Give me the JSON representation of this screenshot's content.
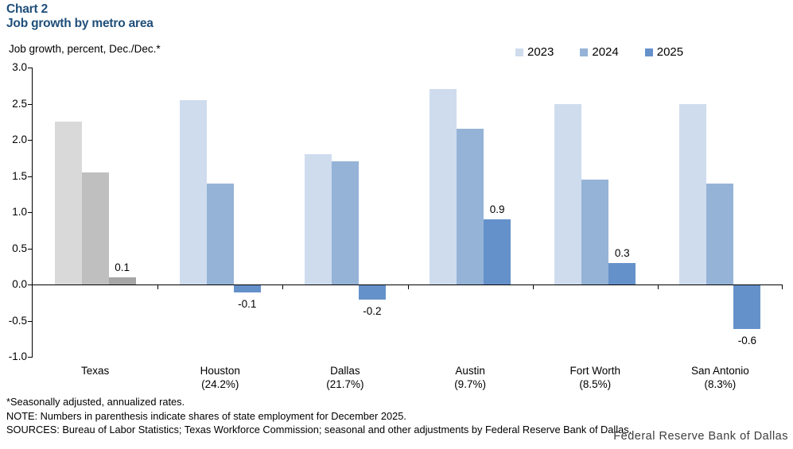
{
  "header": {
    "chart_label": "Chart 2",
    "title": "Job growth by metro area"
  },
  "chart": {
    "unit_label": "Job growth, percent, Dec./Dec.*"
  },
  "chart_data": {
    "type": "bar",
    "title": "Job growth by metro area",
    "ylabel": "Job growth, percent, Dec./Dec.*",
    "ylim": [
      -1.0,
      3.0
    ],
    "ytick_step": 0.5,
    "ytick_labels": [
      "3.0",
      "2.5",
      "2.0",
      "1.5",
      "1.0",
      "0.5",
      "0.0",
      "-0.5",
      "-1.0"
    ],
    "grid": false,
    "legend_position": "top-right",
    "categories": [
      "Texas",
      "Houston",
      "Dallas",
      "Austin",
      "Fort Worth",
      "San Antonio"
    ],
    "category_sublabels": [
      "",
      "(24.2%)",
      "(21.7%)",
      "(9.7%)",
      "(8.5%)",
      "(8.3%)"
    ],
    "series": [
      {
        "name": "2023",
        "color": "#cfdcee",
        "texas_color": "#d9d9d9",
        "values": [
          2.25,
          2.55,
          1.8,
          2.7,
          2.5,
          2.5
        ]
      },
      {
        "name": "2024",
        "color": "#95b3d7",
        "texas_color": "#bfbfbf",
        "values": [
          1.55,
          1.4,
          1.7,
          2.15,
          1.45,
          1.4
        ]
      },
      {
        "name": "2025",
        "color": "#6591ca",
        "texas_color": "#a6a6a6",
        "values": [
          0.1,
          -0.1,
          -0.2,
          0.9,
          0.3,
          -0.6
        ],
        "data_labels": [
          "0.1",
          "-0.1",
          "-0.2",
          "0.9",
          "0.3",
          "-0.6"
        ]
      }
    ]
  },
  "footer": {
    "footnote": "*Seasonally adjusted, annualized rates.",
    "note": "NOTE: Numbers in parenthesis indicate shares of state employment for December 2025.",
    "sources": "SOURCES: Bureau of Labor Statistics; Texas Workforce Commission; seasonal and other adjustments by Federal Reserve Bank of Dallas.",
    "attribution": "Federal Reserve Bank of Dallas"
  }
}
